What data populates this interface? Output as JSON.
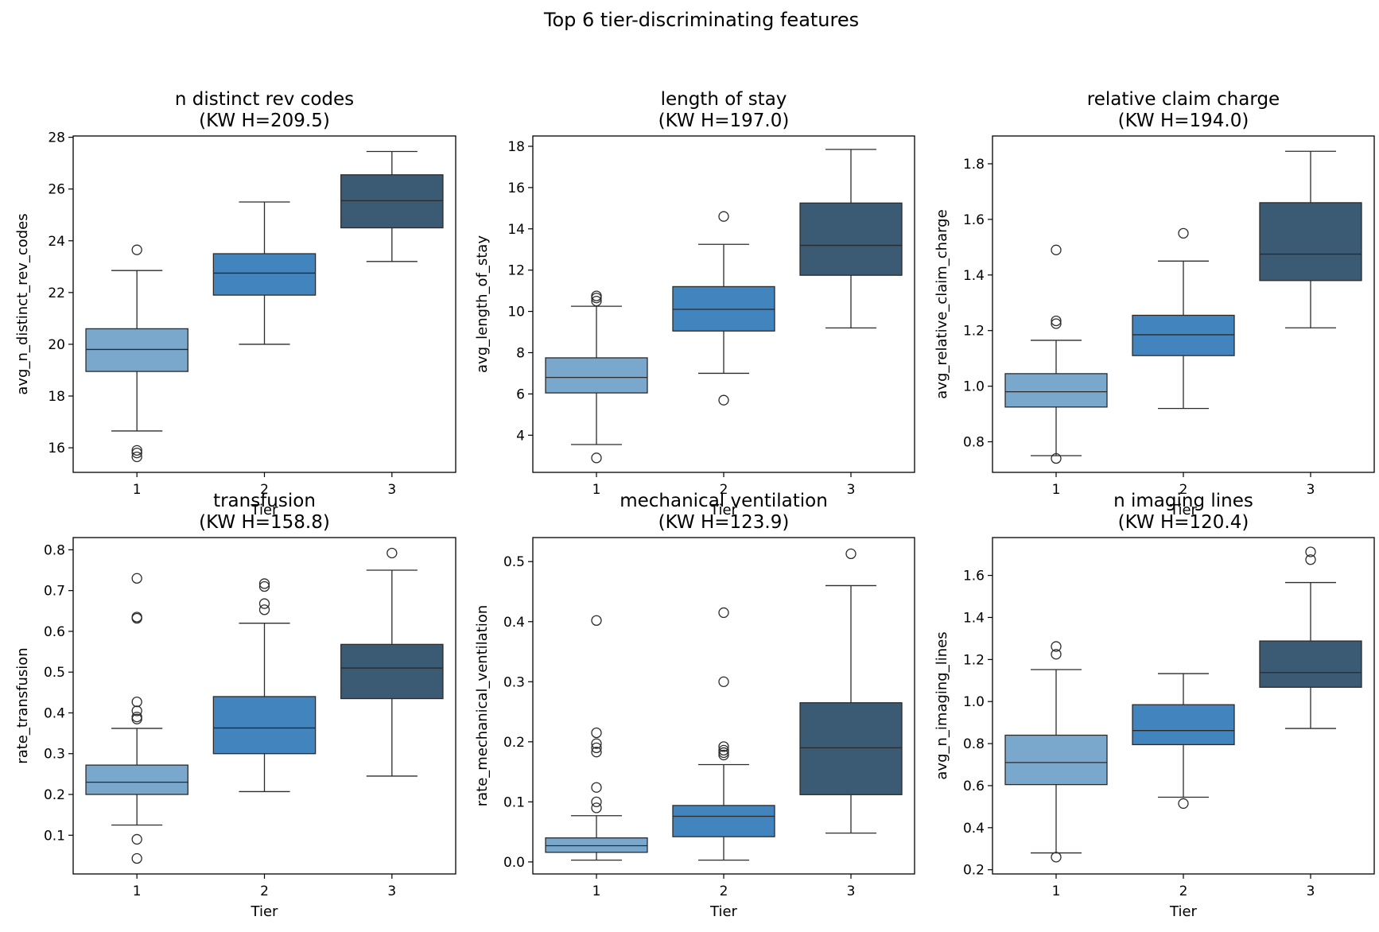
{
  "figure_title": "Top 6 tier-discriminating features",
  "colors": {
    "tier_fills": [
      "#7aa8cc",
      "#4285be",
      "#3b5a73"
    ],
    "edge": "#2b2b2b",
    "axes": "#000000"
  },
  "chart_data": [
    {
      "type": "box",
      "title": "n distinct rev codes",
      "subtitle": "(KW H=209.5)",
      "xlabel": "Tier",
      "ylabel": "avg_n_distinct_rev_codes",
      "categories": [
        "1",
        "2",
        "3"
      ],
      "ylim": [
        15.05,
        28.05
      ],
      "yticks": [
        16,
        18,
        20,
        22,
        24,
        26,
        28
      ],
      "ytick_labels": [
        "16",
        "18",
        "20",
        "22",
        "24",
        "26",
        "28"
      ],
      "boxes": [
        {
          "tier": "1",
          "whisker_low": 16.65,
          "q1": 18.95,
          "median": 19.8,
          "q3": 20.6,
          "whisker_high": 22.85,
          "outliers": [
            23.65,
            15.9,
            15.8,
            15.65
          ]
        },
        {
          "tier": "2",
          "whisker_low": 20.0,
          "q1": 21.9,
          "median": 22.75,
          "q3": 23.5,
          "whisker_high": 25.5,
          "outliers": []
        },
        {
          "tier": "3",
          "whisker_low": 23.2,
          "q1": 24.5,
          "median": 25.55,
          "q3": 26.55,
          "whisker_high": 27.45,
          "outliers": []
        }
      ]
    },
    {
      "type": "box",
      "title": "length of stay",
      "subtitle": "(KW H=197.0)",
      "xlabel": "Tier",
      "ylabel": "avg_length_of_stay",
      "categories": [
        "1",
        "2",
        "3"
      ],
      "ylim": [
        2.2,
        18.5
      ],
      "yticks": [
        4,
        6,
        8,
        10,
        12,
        14,
        16,
        18
      ],
      "ytick_labels": [
        "4",
        "6",
        "8",
        "10",
        "12",
        "14",
        "16",
        "18"
      ],
      "boxes": [
        {
          "tier": "1",
          "whisker_low": 3.55,
          "q1": 6.05,
          "median": 6.8,
          "q3": 7.75,
          "whisker_high": 10.25,
          "outliers": [
            10.75,
            10.65,
            10.5,
            2.9
          ]
        },
        {
          "tier": "2",
          "whisker_low": 7.0,
          "q1": 9.05,
          "median": 10.1,
          "q3": 11.2,
          "whisker_high": 13.25,
          "outliers": [
            14.6,
            5.7
          ]
        },
        {
          "tier": "3",
          "whisker_low": 9.2,
          "q1": 11.75,
          "median": 13.2,
          "q3": 15.25,
          "whisker_high": 17.85,
          "outliers": []
        }
      ]
    },
    {
      "type": "box",
      "title": "relative claim charge",
      "subtitle": "(KW H=194.0)",
      "xlabel": "Tier",
      "ylabel": "avg_relative_claim_charge",
      "categories": [
        "1",
        "2",
        "3"
      ],
      "ylim": [
        0.69,
        1.9
      ],
      "yticks": [
        0.8,
        1.0,
        1.2,
        1.4,
        1.6,
        1.8
      ],
      "ytick_labels": [
        "0.8",
        "1.0",
        "1.2",
        "1.4",
        "1.6",
        "1.8"
      ],
      "boxes": [
        {
          "tier": "1",
          "whisker_low": 0.75,
          "q1": 0.925,
          "median": 0.98,
          "q3": 1.045,
          "whisker_high": 1.165,
          "outliers": [
            1.49,
            1.235,
            1.225,
            0.74
          ]
        },
        {
          "tier": "2",
          "whisker_low": 0.92,
          "q1": 1.11,
          "median": 1.185,
          "q3": 1.255,
          "whisker_high": 1.45,
          "outliers": [
            1.55
          ]
        },
        {
          "tier": "3",
          "whisker_low": 1.21,
          "q1": 1.38,
          "median": 1.475,
          "q3": 1.66,
          "whisker_high": 1.845,
          "outliers": []
        }
      ]
    },
    {
      "type": "box",
      "title": "transfusion",
      "subtitle": "(KW H=158.8)",
      "xlabel": "Tier",
      "ylabel": "rate_transfusion",
      "categories": [
        "1",
        "2",
        "3"
      ],
      "ylim": [
        0.005,
        0.83
      ],
      "yticks": [
        0.1,
        0.2,
        0.3,
        0.4,
        0.5,
        0.6,
        0.7,
        0.8
      ],
      "ytick_labels": [
        "0.1",
        "0.2",
        "0.3",
        "0.4",
        "0.5",
        "0.6",
        "0.7",
        "0.8"
      ],
      "boxes": [
        {
          "tier": "1",
          "whisker_low": 0.125,
          "q1": 0.2,
          "median": 0.23,
          "q3": 0.272,
          "whisker_high": 0.362,
          "outliers": [
            0.73,
            0.635,
            0.632,
            0.427,
            0.405,
            0.39,
            0.385,
            0.09,
            0.043
          ]
        },
        {
          "tier": "2",
          "whisker_low": 0.207,
          "q1": 0.3,
          "median": 0.363,
          "q3": 0.44,
          "whisker_high": 0.62,
          "outliers": [
            0.717,
            0.71,
            0.668,
            0.653
          ]
        },
        {
          "tier": "3",
          "whisker_low": 0.245,
          "q1": 0.435,
          "median": 0.51,
          "q3": 0.568,
          "whisker_high": 0.75,
          "outliers": [
            0.792
          ]
        }
      ]
    },
    {
      "type": "box",
      "title": "mechanical ventilation",
      "subtitle": "(KW H=123.9)",
      "xlabel": "Tier",
      "ylabel": "rate_mechanical_ventilation",
      "categories": [
        "1",
        "2",
        "3"
      ],
      "ylim": [
        -0.02,
        0.54
      ],
      "yticks": [
        0.0,
        0.1,
        0.2,
        0.3,
        0.4,
        0.5
      ],
      "ytick_labels": [
        "0.0",
        "0.1",
        "0.2",
        "0.3",
        "0.4",
        "0.5"
      ],
      "boxes": [
        {
          "tier": "1",
          "whisker_low": 0.003,
          "q1": 0.016,
          "median": 0.027,
          "q3": 0.04,
          "whisker_high": 0.077,
          "outliers": [
            0.402,
            0.215,
            0.197,
            0.19,
            0.183,
            0.124,
            0.1,
            0.09
          ]
        },
        {
          "tier": "2",
          "whisker_low": 0.003,
          "q1": 0.042,
          "median": 0.076,
          "q3": 0.094,
          "whisker_high": 0.162,
          "outliers": [
            0.415,
            0.3,
            0.192,
            0.186,
            0.182,
            0.178
          ]
        },
        {
          "tier": "3",
          "whisker_low": 0.048,
          "q1": 0.112,
          "median": 0.19,
          "q3": 0.265,
          "whisker_high": 0.46,
          "outliers": [
            0.513
          ]
        }
      ]
    },
    {
      "type": "box",
      "title": "n imaging lines",
      "subtitle": "(KW H=120.4)",
      "xlabel": "Tier",
      "ylabel": "avg_n_imaging_lines",
      "categories": [
        "1",
        "2",
        "3"
      ],
      "ylim": [
        0.18,
        1.78
      ],
      "yticks": [
        0.2,
        0.4,
        0.6,
        0.8,
        1.0,
        1.2,
        1.4,
        1.6
      ],
      "ytick_labels": [
        "0.2",
        "0.4",
        "0.6",
        "0.8",
        "1.0",
        "1.2",
        "1.4",
        "1.6"
      ],
      "boxes": [
        {
          "tier": "1",
          "whisker_low": 0.28,
          "q1": 0.605,
          "median": 0.71,
          "q3": 0.84,
          "whisker_high": 1.152,
          "outliers": [
            1.262,
            1.225,
            0.26
          ]
        },
        {
          "tier": "2",
          "whisker_low": 0.545,
          "q1": 0.795,
          "median": 0.862,
          "q3": 0.985,
          "whisker_high": 1.133,
          "outliers": [
            0.515
          ]
        },
        {
          "tier": "3",
          "whisker_low": 0.872,
          "q1": 1.068,
          "median": 1.138,
          "q3": 1.288,
          "whisker_high": 1.566,
          "outliers": [
            1.712,
            1.675
          ]
        }
      ]
    }
  ]
}
